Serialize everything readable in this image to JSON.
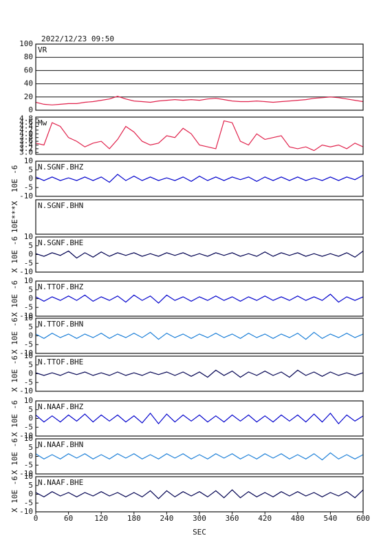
{
  "chart_data": [
    {
      "type": "line",
      "title": "2022/12/23 09:50",
      "label": "VR",
      "color": "#e0204a",
      "grid": true,
      "x": [
        0,
        15,
        30,
        45,
        60,
        75,
        90,
        105,
        120,
        135,
        150,
        165,
        180,
        195,
        210,
        225,
        240,
        255,
        270,
        285,
        300,
        315,
        330,
        345,
        360,
        375,
        390,
        405,
        420,
        435,
        450,
        465,
        480,
        495,
        510,
        525,
        540,
        555,
        570,
        585,
        600
      ],
      "values": [
        12,
        9,
        8,
        9,
        10,
        10,
        12,
        13,
        15,
        17,
        21,
        17,
        14,
        13,
        12,
        14,
        15,
        16,
        15,
        16,
        15,
        17,
        18,
        16,
        14,
        13,
        13,
        14,
        13,
        12,
        13,
        14,
        15,
        16,
        18,
        19,
        20,
        19,
        17,
        15,
        13
      ],
      "xlim": [
        0,
        600
      ],
      "ylim": [
        0,
        100
      ],
      "yticks": [
        0,
        20,
        40,
        60,
        80,
        100
      ]
    },
    {
      "type": "line",
      "label": "Mw",
      "color": "#e0204a",
      "x": [
        0,
        15,
        30,
        45,
        60,
        75,
        90,
        105,
        120,
        135,
        150,
        165,
        180,
        195,
        210,
        225,
        240,
        255,
        270,
        285,
        300,
        315,
        330,
        345,
        360,
        375,
        390,
        405,
        420,
        435,
        450,
        465,
        480,
        495,
        510,
        525,
        540,
        555,
        570,
        585,
        600
      ],
      "values": [
        3.5,
        3.4,
        4.6,
        4.4,
        3.8,
        3.6,
        3.3,
        3.5,
        3.6,
        3.2,
        3.7,
        4.4,
        4.1,
        3.6,
        3.4,
        3.5,
        3.9,
        3.8,
        4.3,
        4.0,
        3.4,
        3.3,
        3.2,
        4.7,
        4.6,
        3.6,
        3.4,
        4.0,
        3.7,
        3.8,
        3.9,
        3.3,
        3.2,
        3.3,
        3.1,
        3.4,
        3.3,
        3.4,
        3.2,
        3.5,
        3.3
      ],
      "xlim": [
        0,
        600
      ],
      "ylim": [
        2.9,
        4.9
      ],
      "yticks": [
        {
          "value": 3,
          "label": "3.0"
        },
        3.2,
        3.4,
        3.6,
        3.8,
        {
          "value": 4,
          "label": "4.0"
        },
        4.2,
        4.4,
        4.6,
        4.8
      ]
    },
    {
      "type": "line",
      "label": "N.SGNF.BHZ",
      "ylabel": "10E -6",
      "color": "#0000cc",
      "x": [
        0,
        15,
        30,
        45,
        60,
        75,
        90,
        105,
        120,
        135,
        150,
        165,
        180,
        195,
        210,
        225,
        240,
        255,
        270,
        285,
        300,
        315,
        330,
        345,
        360,
        375,
        390,
        405,
        420,
        435,
        450,
        465,
        480,
        495,
        510,
        525,
        540,
        555,
        570,
        585,
        600
      ],
      "values": [
        1,
        -1,
        1,
        -1,
        0.5,
        -1,
        1,
        -1,
        1,
        -2,
        2.5,
        -1,
        1.5,
        -1,
        1,
        -1,
        0.5,
        -1,
        1,
        -1.5,
        1.5,
        -1,
        1,
        -1,
        1,
        -0.5,
        1,
        -1.5,
        1,
        -1,
        1,
        -1,
        1,
        -1,
        0.5,
        -1,
        1,
        -1,
        1,
        -0.5,
        2
      ],
      "xlim": [
        0,
        600
      ],
      "ylim": [
        -10,
        10
      ],
      "yticks": [
        -10,
        -5,
        0,
        5,
        10
      ]
    },
    {
      "type": "line",
      "label": "N.SGNF.BHN",
      "ylabel": "10E***X",
      "xlim": [
        0,
        600
      ]
    },
    {
      "type": "line",
      "label": "N.SGNF.BHE",
      "ylabel": "X 10E -6",
      "color": "#000050",
      "x": [
        0,
        15,
        30,
        45,
        60,
        75,
        90,
        105,
        120,
        135,
        150,
        165,
        180,
        195,
        210,
        225,
        240,
        255,
        270,
        285,
        300,
        315,
        330,
        345,
        360,
        375,
        390,
        405,
        420,
        435,
        450,
        465,
        480,
        495,
        510,
        525,
        540,
        555,
        570,
        585,
        600
      ],
      "values": [
        0.5,
        -1,
        1,
        -0.5,
        2,
        -2,
        1,
        -1.5,
        1.5,
        -1,
        1,
        -0.5,
        1,
        -1,
        0.5,
        -1,
        1,
        -0.5,
        1,
        -1,
        0.5,
        -1,
        1,
        -0.5,
        1,
        -1,
        0.5,
        -1,
        1.5,
        -1,
        1,
        -0.5,
        1,
        -1,
        0.5,
        -1,
        0.5,
        -1,
        1,
        -1.5,
        2
      ],
      "xlim": [
        0,
        600
      ],
      "ylim": [
        -10,
        10
      ],
      "yticks": [
        -10,
        -5,
        0,
        5,
        10
      ]
    },
    {
      "type": "line",
      "label": "N.TTOF.BHZ",
      "ylabel": "X 10E -6",
      "color": "#0000cc",
      "x": [
        0,
        15,
        30,
        45,
        60,
        75,
        90,
        105,
        120,
        135,
        150,
        165,
        180,
        195,
        210,
        225,
        240,
        255,
        270,
        285,
        300,
        315,
        330,
        345,
        360,
        375,
        390,
        405,
        420,
        435,
        450,
        465,
        480,
        495,
        510,
        525,
        540,
        555,
        570,
        585,
        600
      ],
      "values": [
        1,
        -1.5,
        1,
        -1,
        1.5,
        -1,
        2,
        -1.5,
        1,
        -1,
        1.5,
        -2,
        2,
        -1,
        1.5,
        -2.5,
        2,
        -1,
        1,
        -1.5,
        1,
        -1,
        1.5,
        -1,
        1,
        -1.5,
        1,
        -1,
        1.5,
        -1,
        1,
        -1,
        1.5,
        -1,
        1,
        -1,
        2.5,
        -2,
        1,
        -1,
        1
      ],
      "xlim": [
        0,
        600
      ],
      "ylim": [
        -10,
        10
      ],
      "yticks": [
        -10,
        -5,
        0,
        5,
        10
      ]
    },
    {
      "type": "line",
      "label": "N.TTOF.BHN",
      "ylabel": "X 10E -6",
      "color": "#1e80d8",
      "x": [
        0,
        15,
        30,
        45,
        60,
        75,
        90,
        105,
        120,
        135,
        150,
        165,
        180,
        195,
        210,
        225,
        240,
        255,
        270,
        285,
        300,
        315,
        330,
        345,
        360,
        375,
        390,
        405,
        420,
        435,
        450,
        465,
        480,
        495,
        510,
        525,
        540,
        555,
        570,
        585,
        600
      ],
      "values": [
        1,
        -1.5,
        1.5,
        -1,
        1,
        -1.5,
        1,
        -1,
        1.5,
        -1.5,
        1,
        -1,
        1.5,
        -1,
        2,
        -2,
        1.5,
        -1,
        1,
        -1.5,
        1,
        -1,
        1.5,
        -1,
        1,
        -1.5,
        1.5,
        -1,
        1,
        -1.5,
        1,
        -1,
        1.5,
        -2,
        2,
        -1.5,
        1,
        -1,
        1.5,
        -1,
        1
      ],
      "xlim": [
        0,
        600
      ],
      "ylim": [
        -10,
        10
      ],
      "yticks": [
        -10,
        -5,
        0,
        5,
        10
      ]
    },
    {
      "type": "line",
      "label": "N.TTOF.BHE",
      "ylabel": "X 10E -6",
      "color": "#000050",
      "x": [
        0,
        15,
        30,
        45,
        60,
        75,
        90,
        105,
        120,
        135,
        150,
        165,
        180,
        195,
        210,
        225,
        240,
        255,
        270,
        285,
        300,
        315,
        330,
        345,
        360,
        375,
        390,
        405,
        420,
        435,
        450,
        465,
        480,
        495,
        510,
        525,
        540,
        555,
        570,
        585,
        600
      ],
      "values": [
        0.5,
        -1,
        0.5,
        -1,
        1,
        -0.5,
        1,
        -1,
        0.5,
        -1,
        1,
        -1,
        0.5,
        -1,
        1,
        -0.5,
        1,
        -1,
        1,
        -1.5,
        1,
        -2,
        2,
        -1,
        1.5,
        -2,
        1,
        -1,
        1.5,
        -1,
        1,
        -2,
        2,
        -1,
        1,
        -1.5,
        1,
        -1,
        0.5,
        -1,
        0.5
      ],
      "xlim": [
        0,
        600
      ],
      "ylim": [
        -10,
        10
      ],
      "yticks": [
        -10,
        -5,
        0,
        5,
        10
      ]
    },
    {
      "type": "line",
      "label": "N.NAAF.BHZ",
      "ylabel": "X 10E -6",
      "color": "#0000cc",
      "x": [
        0,
        15,
        30,
        45,
        60,
        75,
        90,
        105,
        120,
        135,
        150,
        165,
        180,
        195,
        210,
        225,
        240,
        255,
        270,
        285,
        300,
        315,
        330,
        345,
        360,
        375,
        390,
        405,
        420,
        435,
        450,
        465,
        480,
        495,
        510,
        525,
        540,
        555,
        570,
        585,
        600
      ],
      "values": [
        2,
        -2,
        1.5,
        -2,
        2,
        -1.5,
        2.5,
        -2,
        2,
        -1.5,
        2,
        -2,
        1.5,
        -2.5,
        3,
        -3,
        2.5,
        -2,
        2,
        -1.5,
        2,
        -2,
        1.5,
        -2,
        2,
        -1.5,
        2,
        -2,
        1.5,
        -2,
        2,
        -1.5,
        2,
        -2,
        2.5,
        -2,
        3,
        -3,
        2,
        -1.5,
        1.5
      ],
      "xlim": [
        0,
        600
      ],
      "ylim": [
        -10,
        10
      ],
      "yticks": [
        -10,
        -5,
        0,
        5,
        10
      ]
    },
    {
      "type": "line",
      "label": "N.NAAF.BHN",
      "ylabel": "X 10E -6",
      "color": "#1e80d8",
      "x": [
        0,
        15,
        30,
        45,
        60,
        75,
        90,
        105,
        120,
        135,
        150,
        165,
        180,
        195,
        210,
        225,
        240,
        255,
        270,
        285,
        300,
        315,
        330,
        345,
        360,
        375,
        390,
        405,
        420,
        435,
        450,
        465,
        480,
        495,
        510,
        525,
        540,
        555,
        570,
        585,
        600
      ],
      "values": [
        1.5,
        -1.5,
        1,
        -1.5,
        1.5,
        -1,
        1.5,
        -1.5,
        1,
        -1.5,
        1.5,
        -1,
        1.5,
        -1.5,
        1,
        -1.5,
        1.5,
        -1,
        1.5,
        -1.5,
        1,
        -1.5,
        1.5,
        -1,
        1.5,
        -1.5,
        1,
        -1.5,
        1.5,
        -1,
        1.5,
        -1.5,
        1,
        -1.5,
        1.5,
        -2,
        2,
        -1.5,
        1,
        -1.5,
        1
      ],
      "xlim": [
        0,
        600
      ],
      "ylim": [
        -10,
        10
      ],
      "yticks": [
        -10,
        -5,
        0,
        5,
        10
      ]
    },
    {
      "type": "line",
      "label": "N.NAAF.BHE",
      "ylabel": "X 10E -6",
      "color": "#000050",
      "x": [
        0,
        15,
        30,
        45,
        60,
        75,
        90,
        105,
        120,
        135,
        150,
        165,
        180,
        195,
        210,
        225,
        240,
        255,
        270,
        285,
        300,
        315,
        330,
        345,
        360,
        375,
        390,
        405,
        420,
        435,
        450,
        465,
        480,
        495,
        510,
        525,
        540,
        555,
        570,
        585,
        600
      ],
      "values": [
        1,
        -1.5,
        1.5,
        -1,
        1,
        -1.5,
        1,
        -1,
        1.5,
        -1,
        1,
        -1.5,
        1,
        -1.5,
        2,
        -2.5,
        2,
        -1.5,
        1.5,
        -1,
        1.5,
        -1.5,
        2,
        -2,
        2.5,
        -2,
        1.5,
        -1.5,
        1,
        -1.5,
        1.5,
        -1,
        1.5,
        -1,
        1,
        -1.5,
        1,
        -1,
        1.5,
        -2,
        2.5
      ],
      "xlim": [
        0,
        600
      ],
      "ylim": [
        -10,
        10
      ],
      "yticks": [
        -10,
        -5,
        0,
        5,
        10
      ],
      "xticks": [
        0,
        60,
        120,
        180,
        240,
        300,
        360,
        420,
        480,
        540,
        600
      ],
      "xlabel": "SEC"
    }
  ]
}
